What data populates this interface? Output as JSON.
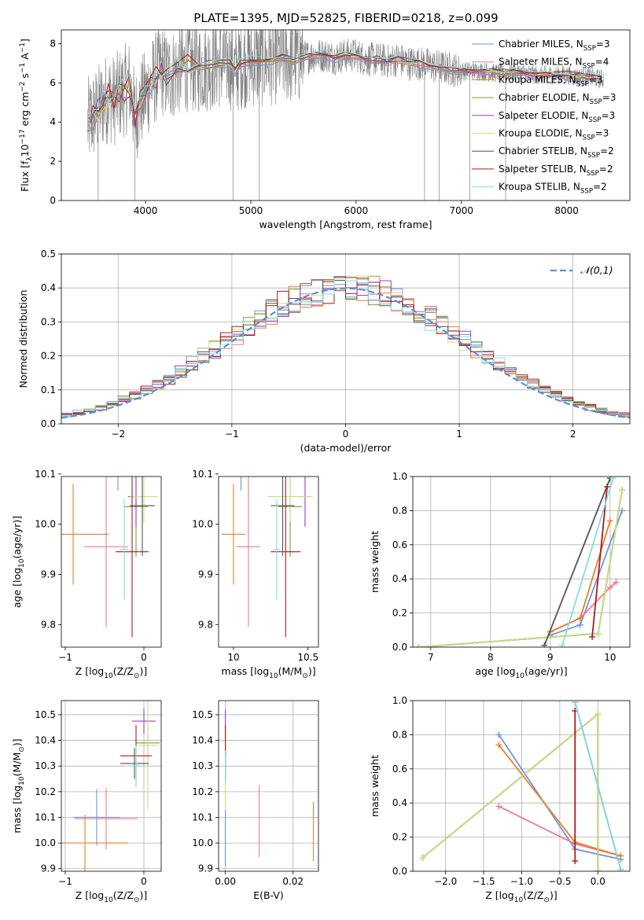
{
  "figure_title": "PLATE=1395, MJD=52825, FIBERID=0218, z=0.099",
  "fits": [
    {
      "label": "Chabrier MILES, N$_{SSP}$=3",
      "color": "#6f95e0"
    },
    {
      "label": "Salpeter MILES, N$_{SSP}$=4",
      "color": "#f07b8e"
    },
    {
      "label": "Kroupa MILES, N$_{SSP}$=3",
      "color": "#e7802c"
    },
    {
      "label": "Chabrier ELODIE, N$_{SSP}$=3",
      "color": "#7d9a3b"
    },
    {
      "label": "Salpeter ELODIE, N$_{SSP}$=3",
      "color": "#a43bc4"
    },
    {
      "label": "Kroupa ELODIE, N$_{SSP}$=3",
      "color": "#c7e27a"
    },
    {
      "label": "Chabrier STELIB, N$_{SSP}$=2",
      "color": "#555555"
    },
    {
      "label": "Salpeter STELIB, N$_{SSP}$=2",
      "color": "#aa1c1c"
    },
    {
      "label": "Kroupa STELIB, N$_{SSP}$=2",
      "color": "#86dbe6"
    }
  ],
  "chart_data": [
    {
      "id": "spectrum",
      "type": "line",
      "xlabel": "wavelength [Angstrom, rest frame]",
      "ylabel": "Flux [f$_\\lambda$10$^{-17}$ erg cm$^{-2}$ s$^{-1}$ A$^{-1}$]",
      "xlim": [
        3200,
        8600
      ],
      "ylim": [
        0,
        8.7
      ],
      "xticks": [
        4000,
        5000,
        6000,
        7000,
        8000
      ],
      "yticks": [
        0,
        2,
        4,
        6,
        8
      ],
      "legend": "upper-right",
      "grid": false,
      "observed_color": "#808080",
      "model_points": {
        "x": [
          3450,
          3500,
          3550,
          3600,
          3650,
          3700,
          3750,
          3800,
          3850,
          3900,
          3950,
          4000,
          4050,
          4100,
          4150,
          4200,
          4300,
          4400,
          4500,
          4600,
          4700,
          4800,
          4850,
          4900,
          5000,
          5100,
          5200,
          5300,
          5400,
          5500,
          5600,
          5700,
          5800,
          5900,
          6000,
          6100,
          6200,
          6300,
          6400,
          6500,
          6600,
          6700,
          6800,
          6900,
          7000,
          7100,
          7200,
          7300,
          7400,
          7500,
          7600,
          7700,
          7800,
          7900,
          8000,
          8100,
          8200,
          8300
        ],
        "y": [
          3.9,
          4.3,
          4.6,
          5.0,
          5.3,
          5.1,
          5.4,
          5.6,
          5.9,
          4.2,
          4.9,
          5.4,
          5.9,
          6.3,
          6.7,
          6.3,
          6.6,
          6.9,
          6.8,
          6.9,
          7.0,
          7.0,
          6.6,
          7.0,
          7.1,
          7.1,
          7.2,
          7.3,
          7.2,
          7.3,
          7.4,
          7.4,
          7.3,
          7.4,
          7.4,
          7.2,
          7.2,
          7.1,
          7.2,
          7.0,
          7.0,
          6.9,
          6.8,
          6.7,
          6.6,
          6.6,
          6.6,
          6.5,
          6.5,
          6.5,
          6.5,
          6.4,
          6.4,
          6.4,
          6.4,
          6.3,
          6.3,
          6.2
        ]
      }
    },
    {
      "id": "residuals",
      "type": "line",
      "xlabel": "(data-model)/error",
      "ylabel": "Normed distribution",
      "xlim": [
        -2.5,
        2.5
      ],
      "ylim": [
        0,
        0.5
      ],
      "xticks": [
        -2,
        -1,
        0,
        1,
        2
      ],
      "xticklabels": [
        "−2",
        "−1",
        "0",
        "1",
        "2"
      ],
      "yticks": [
        0.0,
        0.1,
        0.2,
        0.3,
        0.4,
        0.5
      ],
      "grid": true,
      "legend": "upper-right",
      "gauss_label": "$\\mathcal{N}(0,1)$",
      "gauss_color": "#5b8ed6"
    },
    {
      "id": "age_vs_Z",
      "type": "scatter",
      "xlabel": "Z [log$_{10}$(Z/Z$_\\odot$)]",
      "ylabel": "age  [log$_{10}$(age/yr)]",
      "xlim": [
        -1.05,
        0.22
      ],
      "ylim": [
        9.755,
        10.095
      ],
      "xticks": [
        -1,
        0
      ],
      "xticklabels": [
        "−1",
        "0"
      ],
      "yticks": [
        9.8,
        9.9,
        10.0,
        10.1
      ],
      "grid": false,
      "points": [
        {
          "fit": 0,
          "x": -0.33,
          "xerr": 0.33,
          "y": 10.097,
          "yerr": 0.03
        },
        {
          "fit": 1,
          "x": -0.48,
          "xerr": 0.28,
          "y": 9.955,
          "yerr": 0.16
        },
        {
          "fit": 2,
          "x": -0.9,
          "xerr": 0.45,
          "y": 9.98,
          "yerr": 0.1
        },
        {
          "fit": 3,
          "x": -0.1,
          "xerr": 0.15,
          "y": 10.035,
          "yerr": 0.1
        },
        {
          "fit": 4,
          "x": -0.1,
          "xerr": 0.1,
          "y": 10.055,
          "yerr": 0.06
        },
        {
          "fit": 5,
          "x": 0.0,
          "xerr": 0.18,
          "y": 10.055,
          "yerr": 0.05
        },
        {
          "fit": 6,
          "x": -0.02,
          "xerr": 0.16,
          "y": 10.037,
          "yerr": 0.1
        },
        {
          "fit": 7,
          "x": -0.15,
          "xerr": 0.21,
          "y": 9.945,
          "yerr": 0.17
        },
        {
          "fit": 8,
          "x": -0.25,
          "xerr": 0.05,
          "y": 9.95,
          "yerr": 0.1
        }
      ]
    },
    {
      "id": "age_vs_mass",
      "type": "scatter",
      "xlabel": "mass [log$_{10}$(M/M$_\\odot$)]",
      "ylabel": "",
      "xlim": [
        9.9,
        10.57
      ],
      "ylim": [
        9.755,
        10.095
      ],
      "xticks": [
        10.0,
        10.5
      ],
      "yticks": [
        9.8,
        9.9,
        10.0,
        10.1
      ],
      "grid": false,
      "points": [
        {
          "fit": 0,
          "x": 10.05,
          "xerr": 0.15,
          "y": 10.097,
          "yerr": 0.03
        },
        {
          "fit": 1,
          "x": 10.1,
          "xerr": 0.08,
          "y": 9.955,
          "yerr": 0.16
        },
        {
          "fit": 2,
          "x": 10.0,
          "xerr": 0.08,
          "y": 9.98,
          "yerr": 0.1
        },
        {
          "fit": 3,
          "x": 10.38,
          "xerr": 0.08,
          "y": 10.035,
          "yerr": 0.1
        },
        {
          "fit": 4,
          "x": 10.48,
          "xerr": 0.04,
          "y": 10.055,
          "yerr": 0.06
        },
        {
          "fit": 5,
          "x": 10.38,
          "xerr": 0.15,
          "y": 10.055,
          "yerr": 0.05
        },
        {
          "fit": 6,
          "x": 10.33,
          "xerr": 0.08,
          "y": 10.037,
          "yerr": 0.1
        },
        {
          "fit": 7,
          "x": 10.35,
          "xerr": 0.1,
          "y": 9.945,
          "yerr": 0.17
        },
        {
          "fit": 8,
          "x": 10.29,
          "xerr": 0.02,
          "y": 9.95,
          "yerr": 0.1
        }
      ]
    },
    {
      "id": "weight_vs_age",
      "type": "line",
      "xlabel": "age  [log$_{10}$(age/yr)]",
      "ylabel": "mass weight",
      "xlim": [
        6.7,
        10.33
      ],
      "ylim": [
        0,
        1.0
      ],
      "xticks": [
        7,
        8,
        9,
        10
      ],
      "yticks": [
        0.0,
        0.2,
        0.4,
        0.6,
        0.8,
        1.0
      ],
      "grid": true,
      "series": [
        {
          "fit": 0,
          "x": [
            9.0,
            9.5,
            10.2
          ],
          "y": [
            0.07,
            0.13,
            0.8
          ]
        },
        {
          "fit": 1,
          "x": [
            9.0,
            9.5,
            10.0,
            10.1
          ],
          "y": [
            0.09,
            0.17,
            0.35,
            0.38
          ]
        },
        {
          "fit": 2,
          "x": [
            9.0,
            9.5,
            10.0
          ],
          "y": [
            0.09,
            0.17,
            0.74
          ]
        },
        {
          "fit": 3,
          "x": [
            6.8,
            9.8,
            10.2
          ],
          "y": [
            0.0,
            0.08,
            0.92
          ]
        },
        {
          "fit": 4,
          "x": [
            6.8,
            9.8,
            10.2
          ],
          "y": [
            0.0,
            0.08,
            0.92
          ]
        },
        {
          "fit": 5,
          "x": [
            6.8,
            9.8,
            10.2
          ],
          "y": [
            0.0,
            0.08,
            0.92
          ]
        },
        {
          "fit": 6,
          "x": [
            8.9,
            10.0
          ],
          "y": [
            0.01,
            0.99
          ]
        },
        {
          "fit": 7,
          "x": [
            9.7,
            9.95
          ],
          "y": [
            0.06,
            0.94
          ]
        },
        {
          "fit": 8,
          "x": [
            9.2,
            10.05
          ],
          "y": [
            0.01,
            0.99
          ]
        }
      ]
    },
    {
      "id": "mass_vs_Z",
      "type": "scatter",
      "xlabel": "Z [log$_{10}$(Z/Z$_\\odot$)]",
      "ylabel": "mass [log$_{10}$(M/M$_\\odot$)]",
      "xlim": [
        -1.05,
        0.22
      ],
      "ylim": [
        9.89,
        10.555
      ],
      "xticks": [
        -1,
        0
      ],
      "xticklabels": [
        "−1",
        "0"
      ],
      "yticks": [
        9.9,
        10.0,
        10.1,
        10.2,
        10.3,
        10.4,
        10.5
      ],
      "grid": true,
      "points": [
        {
          "fit": 0,
          "x": -0.6,
          "xerr": 0.3,
          "y": 10.1,
          "yerr": 0.11
        },
        {
          "fit": 1,
          "x": -0.48,
          "xerr": 0.4,
          "y": 10.095,
          "yerr": 0.12
        },
        {
          "fit": 2,
          "x": -0.75,
          "xerr": 0.55,
          "y": 10.0,
          "yerr": 0.11
        },
        {
          "fit": 3,
          "x": 0.05,
          "xerr": 0.15,
          "y": 10.39,
          "yerr": 0.09
        },
        {
          "fit": 4,
          "x": 0.0,
          "xerr": 0.15,
          "y": 10.475,
          "yerr": 0.05
        },
        {
          "fit": 5,
          "x": 0.05,
          "xerr": 0.13,
          "y": 10.38,
          "yerr": 0.25
        },
        {
          "fit": 6,
          "x": -0.12,
          "xerr": 0.18,
          "y": 10.31,
          "yerr": 0.06
        },
        {
          "fit": 7,
          "x": -0.1,
          "xerr": 0.2,
          "y": 10.34,
          "yerr": 0.12
        },
        {
          "fit": 8,
          "x": -0.1,
          "xerr": 0.1,
          "y": 10.3,
          "yerr": 0.08
        }
      ]
    },
    {
      "id": "mass_vs_ebv",
      "type": "scatter",
      "xlabel": "E(B-V)",
      "ylabel": "",
      "xlim": [
        -0.002,
        0.0275
      ],
      "ylim": [
        9.89,
        10.555
      ],
      "xticks": [
        0.0,
        0.02
      ],
      "xticklabels": [
        "0.00",
        "0.02"
      ],
      "yticks": [
        9.9,
        10.0,
        10.1,
        10.2,
        10.3,
        10.4,
        10.5
      ],
      "grid": true,
      "points": [
        {
          "fit": 0,
          "x": 0.0,
          "xerr": 0,
          "y": 10.02,
          "yerr": 0.11
        },
        {
          "fit": 1,
          "x": 0.01,
          "xerr": 0,
          "y": 10.085,
          "yerr": 0.14
        },
        {
          "fit": 2,
          "x": 0.026,
          "xerr": 0,
          "y": 10.045,
          "yerr": 0.115
        },
        {
          "fit": 3,
          "x": 0.0,
          "xerr": 0,
          "y": 10.33,
          "yerr": 0.09
        },
        {
          "fit": 4,
          "x": 0.0,
          "xerr": 0,
          "y": 10.46,
          "yerr": 0.06
        },
        {
          "fit": 5,
          "x": 0.0,
          "xerr": 0,
          "y": 10.24,
          "yerr": 0.11
        },
        {
          "fit": 6,
          "x": 0.0,
          "xerr": 0,
          "y": 10.3,
          "yerr": 0.06
        },
        {
          "fit": 7,
          "x": 0.0,
          "xerr": 0,
          "y": 10.4,
          "yerr": 0.06
        },
        {
          "fit": 8,
          "x": 0.0,
          "xerr": 0,
          "y": 10.3,
          "yerr": 0.06
        }
      ]
    },
    {
      "id": "weight_vs_Z",
      "type": "line",
      "xlabel": "Z [log$_{10}$(Z/Z$_\\odot$)]",
      "ylabel": "mass weight",
      "xlim": [
        -2.43,
        0.42
      ],
      "ylim": [
        0,
        1.0
      ],
      "xticks": [
        -2.0,
        -1.5,
        -1.0,
        -0.5,
        0.0
      ],
      "xticklabels": [
        "−2.0",
        "−1.5",
        "−1.0",
        "−0.5",
        "0.0"
      ],
      "yticks": [
        0.0,
        0.2,
        0.4,
        0.6,
        0.8,
        1.0
      ],
      "grid": true,
      "series": [
        {
          "fit": 0,
          "x": [
            -1.3,
            -0.3,
            0.3
          ],
          "y": [
            0.8,
            0.13,
            0.07
          ]
        },
        {
          "fit": 1,
          "x": [
            -1.3,
            -0.3,
            0.3
          ],
          "y": [
            0.38,
            0.16,
            0.09
          ]
        },
        {
          "fit": 2,
          "x": [
            -1.3,
            -0.3,
            0.3
          ],
          "y": [
            0.74,
            0.17,
            0.09
          ]
        },
        {
          "fit": 3,
          "x": [
            -2.3,
            0.0,
            0.0
          ],
          "y": [
            0.08,
            0.92,
            0.0
          ]
        },
        {
          "fit": 4,
          "x": [
            -2.3,
            0.0,
            0.0
          ],
          "y": [
            0.08,
            0.92,
            0.0
          ]
        },
        {
          "fit": 5,
          "x": [
            -2.3,
            0.0,
            0.0
          ],
          "y": [
            0.08,
            0.92,
            0.0
          ]
        },
        {
          "fit": 6,
          "x": [
            -0.3,
            0.3
          ],
          "y": [
            0.99,
            0.01
          ]
        },
        {
          "fit": 7,
          "x": [
            -0.3,
            -0.3
          ],
          "y": [
            0.94,
            0.06
          ]
        },
        {
          "fit": 8,
          "x": [
            -0.3,
            0.3
          ],
          "y": [
            0.99,
            0.01
          ]
        }
      ]
    }
  ]
}
